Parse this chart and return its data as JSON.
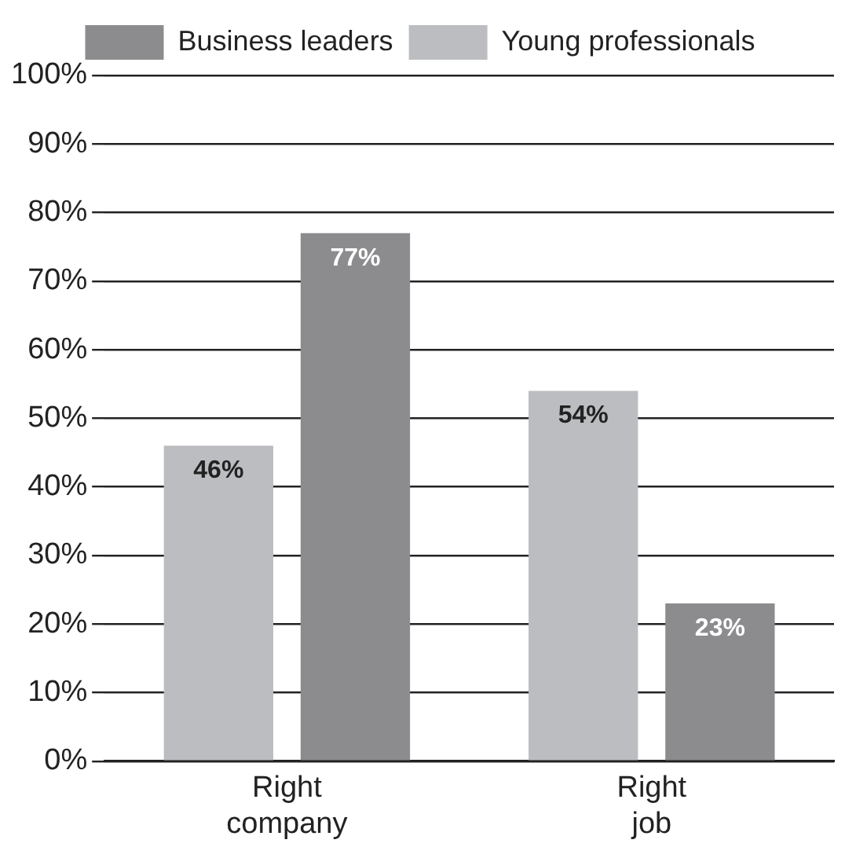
{
  "chart_data": {
    "type": "bar",
    "categories": [
      "Right company",
      "Right job"
    ],
    "series": [
      {
        "name": "Young professionals",
        "color": "#bcbdc0",
        "values": [
          46,
          54
        ],
        "value_labels": [
          "46%",
          "54%"
        ]
      },
      {
        "name": "Business leaders",
        "color": "#8c8c8e",
        "values": [
          77,
          23
        ],
        "value_labels": [
          "77%",
          "23%"
        ]
      }
    ],
    "ylim": [
      0,
      100
    ],
    "yticks": [
      {
        "value": 0,
        "label": "0%"
      },
      {
        "value": 10,
        "label": "10%"
      },
      {
        "value": 20,
        "label": "20%"
      },
      {
        "value": 30,
        "label": "30%"
      },
      {
        "value": 40,
        "label": "40%"
      },
      {
        "value": 50,
        "label": "50%"
      },
      {
        "value": 60,
        "label": "60%"
      },
      {
        "value": 70,
        "label": "70%"
      },
      {
        "value": 80,
        "label": "80%"
      },
      {
        "value": 90,
        "label": "90%"
      },
      {
        "value": 100,
        "label": "100%"
      }
    ],
    "grid": "y",
    "legend": "top"
  }
}
